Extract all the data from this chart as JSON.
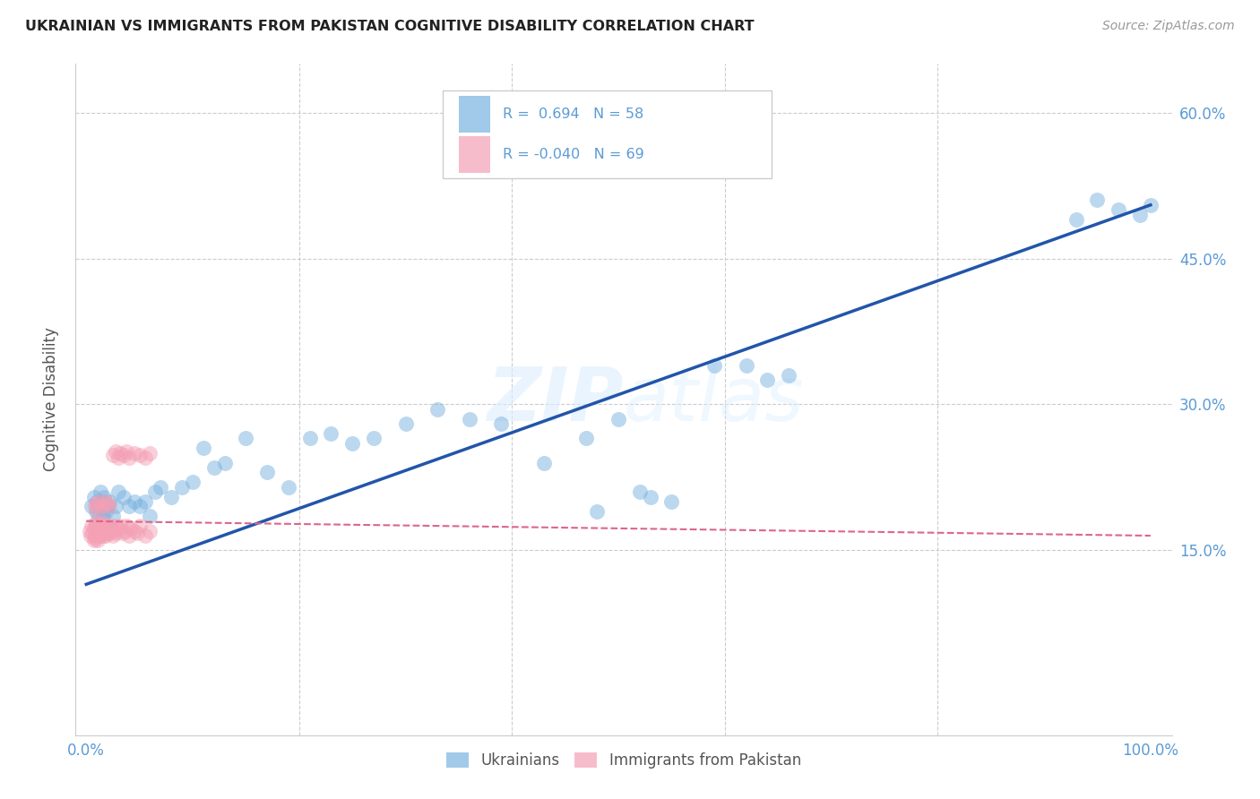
{
  "title": "UKRAINIAN VS IMMIGRANTS FROM PAKISTAN COGNITIVE DISABILITY CORRELATION CHART",
  "source": "Source: ZipAtlas.com",
  "tick_color": "#5b9bd5",
  "ylabel": "Cognitive Disability",
  "xlim": [
    -0.01,
    1.02
  ],
  "ylim": [
    -0.04,
    0.65
  ],
  "x_ticks": [
    0.0,
    0.2,
    0.4,
    0.6,
    0.8,
    1.0
  ],
  "x_tick_labels": [
    "0.0%",
    "",
    "",
    "",
    "",
    "100.0%"
  ],
  "y_ticks": [
    0.15,
    0.3,
    0.45,
    0.6
  ],
  "y_tick_labels": [
    "15.0%",
    "30.0%",
    "45.0%",
    "60.0%"
  ],
  "watermark": "ZIPatlas",
  "blue_color": "#7ab3e0",
  "pink_color": "#f4a0b5",
  "blue_line_color": "#2255aa",
  "pink_line_color": "#dd6688",
  "blue_line": [
    0.0,
    0.115,
    1.0,
    0.505
  ],
  "pink_line": [
    0.0,
    0.18,
    1.0,
    0.165
  ],
  "ukrainian_x": [
    0.005,
    0.007,
    0.009,
    0.01,
    0.011,
    0.012,
    0.013,
    0.014,
    0.015,
    0.016,
    0.017,
    0.018,
    0.02,
    0.022,
    0.025,
    0.028,
    0.03,
    0.035,
    0.04,
    0.045,
    0.05,
    0.055,
    0.06,
    0.065,
    0.07,
    0.08,
    0.09,
    0.1,
    0.11,
    0.12,
    0.13,
    0.15,
    0.17,
    0.19,
    0.21,
    0.23,
    0.25,
    0.27,
    0.3,
    0.33,
    0.36,
    0.39,
    0.43,
    0.47,
    0.5,
    0.53,
    0.48,
    0.52,
    0.55,
    0.59,
    0.62,
    0.64,
    0.66,
    0.93,
    0.95,
    0.97,
    0.99,
    1.0
  ],
  "ukrainian_y": [
    0.195,
    0.205,
    0.19,
    0.2,
    0.195,
    0.185,
    0.21,
    0.195,
    0.2,
    0.185,
    0.205,
    0.19,
    0.195,
    0.2,
    0.185,
    0.195,
    0.21,
    0.205,
    0.195,
    0.2,
    0.195,
    0.2,
    0.185,
    0.21,
    0.215,
    0.205,
    0.215,
    0.22,
    0.255,
    0.235,
    0.24,
    0.265,
    0.23,
    0.215,
    0.265,
    0.27,
    0.26,
    0.265,
    0.28,
    0.295,
    0.285,
    0.28,
    0.24,
    0.265,
    0.285,
    0.205,
    0.19,
    0.21,
    0.2,
    0.34,
    0.34,
    0.325,
    0.33,
    0.49,
    0.51,
    0.5,
    0.495,
    0.505
  ],
  "pakistan_x": [
    0.003,
    0.004,
    0.005,
    0.006,
    0.007,
    0.007,
    0.008,
    0.008,
    0.009,
    0.009,
    0.01,
    0.01,
    0.011,
    0.011,
    0.012,
    0.012,
    0.013,
    0.013,
    0.014,
    0.014,
    0.015,
    0.015,
    0.016,
    0.016,
    0.017,
    0.017,
    0.018,
    0.018,
    0.019,
    0.02,
    0.021,
    0.022,
    0.023,
    0.024,
    0.025,
    0.026,
    0.027,
    0.028,
    0.03,
    0.032,
    0.034,
    0.036,
    0.038,
    0.04,
    0.042,
    0.045,
    0.048,
    0.05,
    0.055,
    0.06,
    0.008,
    0.009,
    0.01,
    0.012,
    0.015,
    0.018,
    0.02,
    0.022,
    0.025,
    0.028,
    0.03,
    0.032,
    0.035,
    0.038,
    0.04,
    0.045,
    0.05,
    0.055,
    0.06
  ],
  "pakistan_y": [
    0.17,
    0.165,
    0.175,
    0.168,
    0.172,
    0.16,
    0.175,
    0.162,
    0.168,
    0.178,
    0.165,
    0.172,
    0.175,
    0.16,
    0.168,
    0.175,
    0.165,
    0.172,
    0.17,
    0.178,
    0.168,
    0.175,
    0.165,
    0.172,
    0.17,
    0.178,
    0.165,
    0.175,
    0.168,
    0.172,
    0.17,
    0.168,
    0.175,
    0.172,
    0.165,
    0.17,
    0.175,
    0.168,
    0.172,
    0.175,
    0.168,
    0.17,
    0.175,
    0.165,
    0.172,
    0.17,
    0.168,
    0.175,
    0.165,
    0.17,
    0.195,
    0.198,
    0.192,
    0.2,
    0.195,
    0.2,
    0.198,
    0.195,
    0.248,
    0.252,
    0.245,
    0.25,
    0.248,
    0.252,
    0.245,
    0.25,
    0.248,
    0.245,
    0.25
  ]
}
